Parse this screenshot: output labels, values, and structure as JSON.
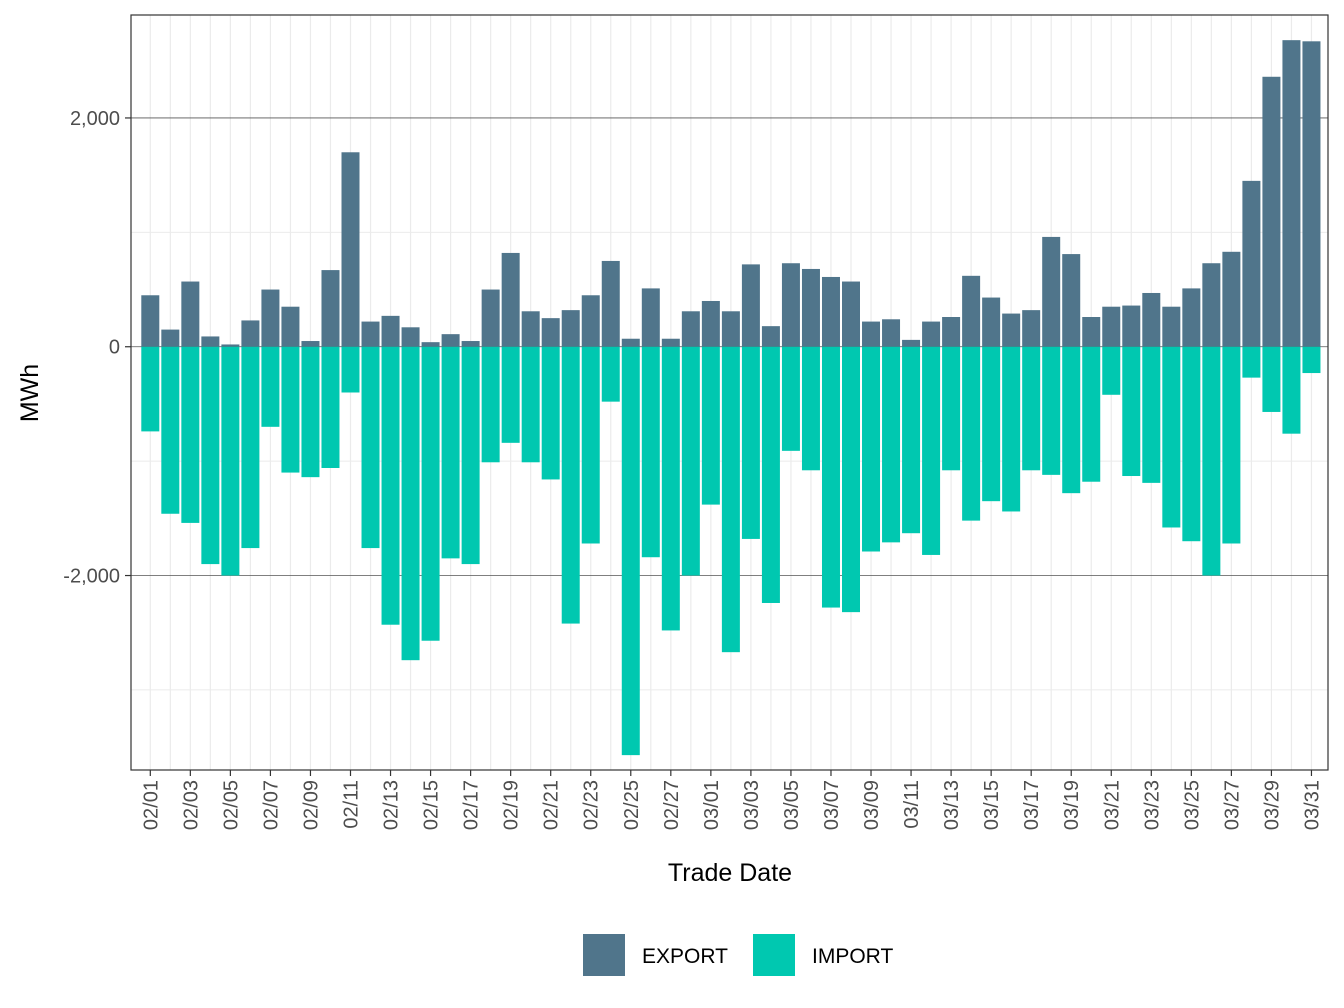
{
  "chart_data": {
    "type": "bar",
    "title": "",
    "xlabel": "Trade Date",
    "ylabel": "MWh",
    "ylim": [
      -3700,
      2900
    ],
    "y_ticks": [
      -2000,
      0,
      2000
    ],
    "y_tick_labels": [
      "-2,000",
      "0",
      "2,000"
    ],
    "grid": true,
    "legend_position": "bottom",
    "categories": [
      "02/01",
      "02/02",
      "02/03",
      "02/04",
      "02/05",
      "02/06",
      "02/07",
      "02/08",
      "02/09",
      "02/10",
      "02/11",
      "02/12",
      "02/13",
      "02/14",
      "02/15",
      "02/16",
      "02/17",
      "02/18",
      "02/19",
      "02/20",
      "02/21",
      "02/22",
      "02/23",
      "02/24",
      "02/25",
      "02/26",
      "02/27",
      "02/28",
      "03/01",
      "03/02",
      "03/03",
      "03/04",
      "03/05",
      "03/06",
      "03/07",
      "03/08",
      "03/09",
      "03/10",
      "03/11",
      "03/12",
      "03/13",
      "03/14",
      "03/15",
      "03/16",
      "03/17",
      "03/18",
      "03/19",
      "03/20",
      "03/21",
      "03/22",
      "03/23",
      "03/24",
      "03/25",
      "03/26",
      "03/27",
      "03/28",
      "03/29",
      "03/30",
      "03/31"
    ],
    "x_tick_labels": [
      "02/01",
      "02/03",
      "02/05",
      "02/07",
      "02/09",
      "02/11",
      "02/13",
      "02/15",
      "02/17",
      "02/19",
      "02/21",
      "02/23",
      "02/25",
      "02/27",
      "03/01",
      "03/03",
      "03/05",
      "03/07",
      "03/09",
      "03/11",
      "03/13",
      "03/15",
      "03/17",
      "03/19",
      "03/21",
      "03/23",
      "03/25",
      "03/27",
      "03/29",
      "03/31"
    ],
    "series": [
      {
        "name": "EXPORT",
        "color": "#50758b",
        "values": [
          450,
          150,
          570,
          90,
          20,
          230,
          500,
          350,
          50,
          670,
          1700,
          220,
          270,
          170,
          40,
          110,
          50,
          500,
          820,
          310,
          250,
          320,
          450,
          750,
          70,
          510,
          70,
          310,
          400,
          310,
          720,
          180,
          730,
          680,
          610,
          570,
          220,
          240,
          60,
          220,
          260,
          620,
          430,
          290,
          320,
          960,
          810,
          260,
          350,
          360,
          470,
          350,
          510,
          730,
          830,
          1450,
          2360,
          2680,
          2670
        ]
      },
      {
        "name": "IMPORT",
        "color": "#00c8b0",
        "values": [
          -740,
          -1460,
          -1540,
          -1900,
          -2000,
          -1760,
          -700,
          -1100,
          -1140,
          -1060,
          -400,
          -1760,
          -2430,
          -2740,
          -2570,
          -1850,
          -1900,
          -1010,
          -840,
          -1010,
          -1160,
          -2420,
          -1720,
          -480,
          -3570,
          -1840,
          -2480,
          -2000,
          -1380,
          -2670,
          -1680,
          -2240,
          -910,
          -1080,
          -2280,
          -2320,
          -1790,
          -1710,
          -1630,
          -1820,
          -1080,
          -1520,
          -1350,
          -1440,
          -1080,
          -1120,
          -1280,
          -1180,
          -420,
          -1130,
          -1190,
          -1580,
          -1700,
          -2000,
          -1720,
          -270,
          -570,
          -760,
          -230
        ]
      }
    ]
  }
}
